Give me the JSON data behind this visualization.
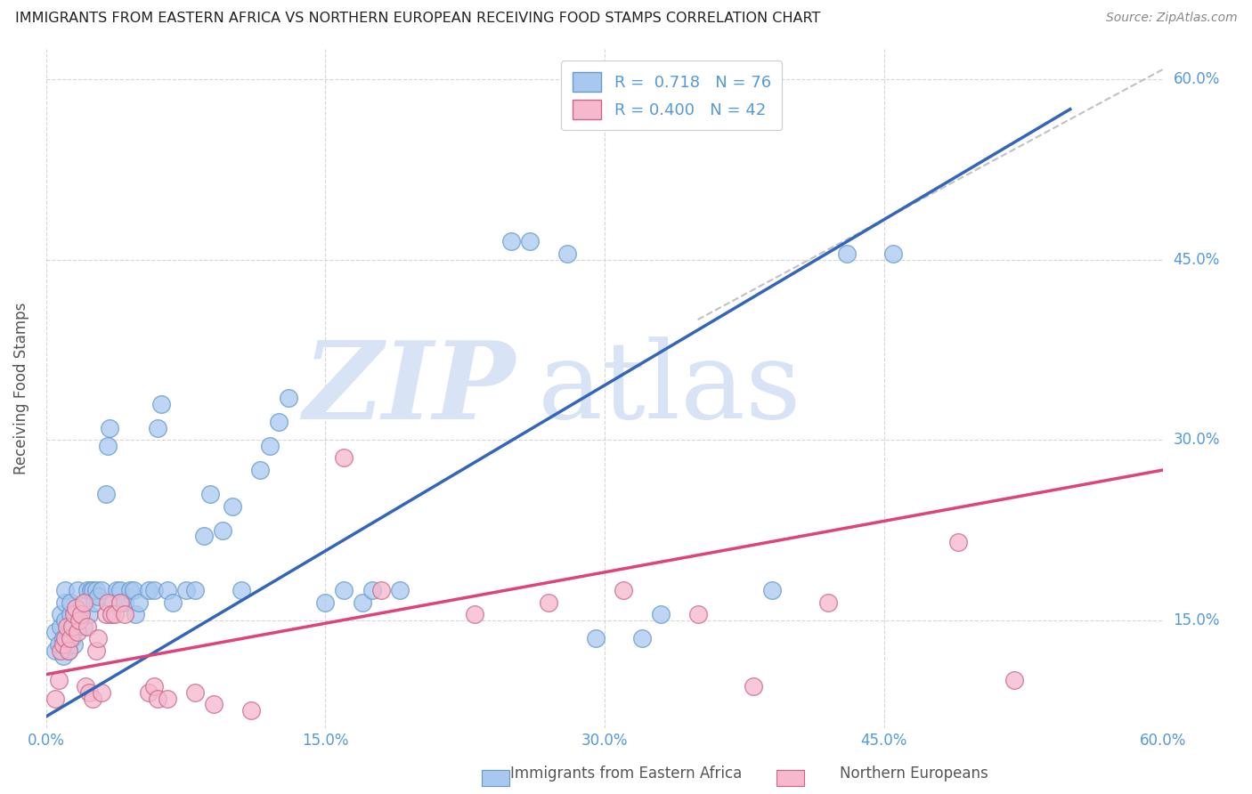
{
  "title": "IMMIGRANTS FROM EASTERN AFRICA VS NORTHERN EUROPEAN RECEIVING FOOD STAMPS CORRELATION CHART",
  "source": "Source: ZipAtlas.com",
  "ylabel": "Receiving Food Stamps",
  "legend_label1": "Immigrants from Eastern Africa",
  "legend_label2": "Northern Europeans",
  "blue_color": "#A8C8F0",
  "blue_edge_color": "#6699CC",
  "pink_color": "#F5B8CC",
  "pink_edge_color": "#CC6688",
  "blue_line_color": "#3366BB",
  "pink_line_color": "#DD4477",
  "ref_line_color": "#BBBBBB",
  "background_color": "#FFFFFF",
  "watermark_color": "#D8E4F5",
  "title_color": "#222222",
  "source_color": "#888888",
  "axis_tick_color": "#5599DD",
  "ylabel_color": "#555555",
  "xmin": 0.0,
  "xmax": 0.6,
  "ymin": 0.06,
  "ymax": 0.625,
  "xtick_positions": [
    0.0,
    0.15,
    0.3,
    0.45,
    0.6
  ],
  "xtick_labels": [
    "0.0%",
    "15.0%",
    "30.0%",
    "45.0%",
    "60.0%"
  ],
  "ytick_positions": [
    0.15,
    0.3,
    0.45,
    0.6
  ],
  "ytick_labels": [
    "15.0%",
    "30.0%",
    "45.0%",
    "60.0%"
  ],
  "blue_line_x": [
    0.0,
    0.55
  ],
  "blue_line_y": [
    0.07,
    0.575
  ],
  "pink_line_x": [
    0.0,
    0.6
  ],
  "pink_line_y": [
    0.105,
    0.275
  ],
  "ref_line_x": [
    0.35,
    0.62
  ],
  "ref_line_y": [
    0.4,
    0.625
  ],
  "blue_scatter": [
    [
      0.005,
      0.125
    ],
    [
      0.005,
      0.14
    ],
    [
      0.007,
      0.13
    ],
    [
      0.008,
      0.145
    ],
    [
      0.008,
      0.155
    ],
    [
      0.009,
      0.12
    ],
    [
      0.009,
      0.135
    ],
    [
      0.01,
      0.15
    ],
    [
      0.01,
      0.165
    ],
    [
      0.01,
      0.175
    ],
    [
      0.011,
      0.13
    ],
    [
      0.012,
      0.125
    ],
    [
      0.012,
      0.14
    ],
    [
      0.013,
      0.155
    ],
    [
      0.013,
      0.165
    ],
    [
      0.014,
      0.135
    ],
    [
      0.015,
      0.145
    ],
    [
      0.015,
      0.13
    ],
    [
      0.016,
      0.155
    ],
    [
      0.017,
      0.175
    ],
    [
      0.018,
      0.155
    ],
    [
      0.02,
      0.145
    ],
    [
      0.021,
      0.165
    ],
    [
      0.022,
      0.175
    ],
    [
      0.023,
      0.155
    ],
    [
      0.024,
      0.175
    ],
    [
      0.025,
      0.175
    ],
    [
      0.026,
      0.165
    ],
    [
      0.027,
      0.175
    ],
    [
      0.028,
      0.17
    ],
    [
      0.03,
      0.175
    ],
    [
      0.032,
      0.255
    ],
    [
      0.033,
      0.295
    ],
    [
      0.034,
      0.31
    ],
    [
      0.035,
      0.155
    ],
    [
      0.036,
      0.165
    ],
    [
      0.038,
      0.175
    ],
    [
      0.04,
      0.175
    ],
    [
      0.04,
      0.165
    ],
    [
      0.042,
      0.165
    ],
    [
      0.045,
      0.175
    ],
    [
      0.047,
      0.175
    ],
    [
      0.048,
      0.155
    ],
    [
      0.05,
      0.165
    ],
    [
      0.055,
      0.175
    ],
    [
      0.058,
      0.175
    ],
    [
      0.06,
      0.31
    ],
    [
      0.062,
      0.33
    ],
    [
      0.065,
      0.175
    ],
    [
      0.068,
      0.165
    ],
    [
      0.075,
      0.175
    ],
    [
      0.08,
      0.175
    ],
    [
      0.085,
      0.22
    ],
    [
      0.088,
      0.255
    ],
    [
      0.095,
      0.225
    ],
    [
      0.1,
      0.245
    ],
    [
      0.105,
      0.175
    ],
    [
      0.115,
      0.275
    ],
    [
      0.12,
      0.295
    ],
    [
      0.125,
      0.315
    ],
    [
      0.13,
      0.335
    ],
    [
      0.15,
      0.165
    ],
    [
      0.16,
      0.175
    ],
    [
      0.17,
      0.165
    ],
    [
      0.175,
      0.175
    ],
    [
      0.19,
      0.175
    ],
    [
      0.25,
      0.465
    ],
    [
      0.26,
      0.465
    ],
    [
      0.28,
      0.455
    ],
    [
      0.295,
      0.135
    ],
    [
      0.32,
      0.135
    ],
    [
      0.33,
      0.155
    ],
    [
      0.39,
      0.175
    ],
    [
      0.43,
      0.455
    ],
    [
      0.455,
      0.455
    ]
  ],
  "pink_scatter": [
    [
      0.005,
      0.085
    ],
    [
      0.007,
      0.1
    ],
    [
      0.008,
      0.125
    ],
    [
      0.009,
      0.13
    ],
    [
      0.01,
      0.135
    ],
    [
      0.011,
      0.145
    ],
    [
      0.012,
      0.125
    ],
    [
      0.013,
      0.135
    ],
    [
      0.014,
      0.145
    ],
    [
      0.015,
      0.155
    ],
    [
      0.016,
      0.16
    ],
    [
      0.017,
      0.14
    ],
    [
      0.018,
      0.15
    ],
    [
      0.019,
      0.155
    ],
    [
      0.02,
      0.165
    ],
    [
      0.021,
      0.095
    ],
    [
      0.022,
      0.145
    ],
    [
      0.023,
      0.09
    ],
    [
      0.025,
      0.085
    ],
    [
      0.027,
      0.125
    ],
    [
      0.028,
      0.135
    ],
    [
      0.03,
      0.09
    ],
    [
      0.032,
      0.155
    ],
    [
      0.033,
      0.165
    ],
    [
      0.035,
      0.155
    ],
    [
      0.037,
      0.155
    ],
    [
      0.04,
      0.165
    ],
    [
      0.042,
      0.155
    ],
    [
      0.055,
      0.09
    ],
    [
      0.058,
      0.095
    ],
    [
      0.06,
      0.085
    ],
    [
      0.065,
      0.085
    ],
    [
      0.08,
      0.09
    ],
    [
      0.09,
      0.08
    ],
    [
      0.11,
      0.075
    ],
    [
      0.16,
      0.285
    ],
    [
      0.18,
      0.175
    ],
    [
      0.23,
      0.155
    ],
    [
      0.27,
      0.165
    ],
    [
      0.31,
      0.175
    ],
    [
      0.35,
      0.155
    ],
    [
      0.38,
      0.095
    ],
    [
      0.42,
      0.165
    ],
    [
      0.49,
      0.215
    ],
    [
      0.52,
      0.1
    ]
  ]
}
